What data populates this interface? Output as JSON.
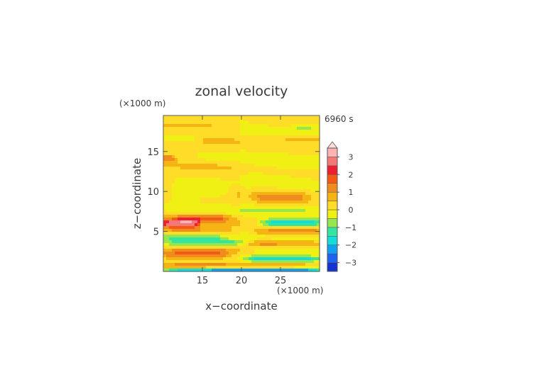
{
  "chart_data": {
    "type": "heatmap",
    "title": "zonal velocity",
    "xlabel": "x−coordinate",
    "ylabel": "z−coordinate",
    "x_unit": "(×1000 m)",
    "y_unit": "(×1000 m)",
    "time_label": "6960 s",
    "xlim": [
      10,
      30
    ],
    "ylim": [
      0,
      19.5
    ],
    "x_ticks": [
      15,
      20,
      25
    ],
    "y_ticks": [
      5,
      10,
      15
    ],
    "colorbar": {
      "levels": [
        -3.5,
        -3.0,
        -2.5,
        -2.0,
        -1.5,
        -1.0,
        -0.5,
        0.0,
        0.5,
        1.0,
        1.5,
        2.0,
        2.5,
        3.0,
        3.5
      ],
      "tick_labels": [
        "3",
        "2",
        "1",
        "0",
        "−1",
        "−2",
        "−3"
      ],
      "tick_values": [
        3,
        2,
        1,
        0,
        -1,
        -2,
        -3
      ],
      "extend": "max",
      "colors": [
        "#1e1e96",
        "#1432d2",
        "#1e64f0",
        "#14a0f0",
        "#14dcdc",
        "#32e6a0",
        "#96e650",
        "#f0f014",
        "#ffdc28",
        "#f5b414",
        "#f08c1e",
        "#f55a14",
        "#f01e32",
        "#f57878",
        "#ffb4b4",
        "#ffdcdc"
      ]
    },
    "structure": {
      "base_value": 0.3,
      "x_split": 20,
      "right_panel_offset": -0.2,
      "bands": [
        {
          "z_center": 19.2,
          "z_half": 0.7,
          "value": -0.3,
          "x_from": 10,
          "x_to": 30
        },
        {
          "z_center": 18.3,
          "z_half": 0.4,
          "value": 0.9,
          "x_from": 10,
          "x_to": 16
        },
        {
          "z_center": 18.0,
          "z_half": 0.3,
          "value": -0.6,
          "x_from": 27,
          "x_to": 30
        },
        {
          "z_center": 16.6,
          "z_half": 0.5,
          "value": -0.8,
          "x_from": 10,
          "x_to": 14
        },
        {
          "z_center": 16.6,
          "z_half": 0.4,
          "value": 0.7,
          "x_from": 26,
          "x_to": 30
        },
        {
          "z_center": 14.2,
          "z_half": 0.5,
          "value": 0.9,
          "x_from": 10,
          "x_to": 11
        },
        {
          "z_center": 14.3,
          "z_half": 0.5,
          "value": -0.4,
          "x_from": 15,
          "x_to": 20
        },
        {
          "z_center": 12.5,
          "z_half": 1.3,
          "value": -0.3,
          "x_from": 20,
          "x_to": 30
        },
        {
          "z_center": 10.0,
          "z_half": 1.0,
          "value": -0.8,
          "x_from": 11,
          "x_to": 18
        },
        {
          "z_center": 9.3,
          "z_half": 0.8,
          "value": 0.9,
          "x_from": 22,
          "x_to": 28
        },
        {
          "z_center": 7.6,
          "z_half": 0.6,
          "value": -0.5,
          "x_from": 10,
          "x_to": 30
        },
        {
          "z_center": 6.6,
          "z_half": 0.5,
          "value": 1.2,
          "x_from": 12,
          "x_to": 18
        },
        {
          "z_center": 6.0,
          "z_half": 0.5,
          "value": 2.4,
          "x_from": 10,
          "x_to": 14
        },
        {
          "z_center": 6.1,
          "z_half": 0.5,
          "value": -2.0,
          "x_from": 23,
          "x_to": 30
        },
        {
          "z_center": 5.2,
          "z_half": 0.5,
          "value": 0.9,
          "x_from": 10,
          "x_to": 18
        },
        {
          "z_center": 5.0,
          "z_half": 0.4,
          "value": 1.1,
          "x_from": 22,
          "x_to": 30
        },
        {
          "z_center": 4.3,
          "z_half": 0.4,
          "value": -1.2,
          "x_from": 10,
          "x_to": 17
        },
        {
          "z_center": 3.6,
          "z_half": 0.5,
          "value": -1.7,
          "x_from": 10,
          "x_to": 20
        },
        {
          "z_center": 3.5,
          "z_half": 0.4,
          "value": 1.0,
          "x_from": 21,
          "x_to": 30
        },
        {
          "z_center": 2.6,
          "z_half": 0.4,
          "value": -0.8,
          "x_from": 22,
          "x_to": 30
        },
        {
          "z_center": 2.2,
          "z_half": 0.6,
          "value": 1.4,
          "x_from": 10,
          "x_to": 18
        },
        {
          "z_center": 1.6,
          "z_half": 0.4,
          "value": -1.8,
          "x_from": 21,
          "x_to": 30
        },
        {
          "z_center": 0.8,
          "z_half": 0.4,
          "value": 0.9,
          "x_from": 10,
          "x_to": 30
        },
        {
          "z_center": 0.2,
          "z_half": 0.25,
          "value": -2.6,
          "x_from": 10,
          "x_to": 30
        }
      ]
    }
  }
}
